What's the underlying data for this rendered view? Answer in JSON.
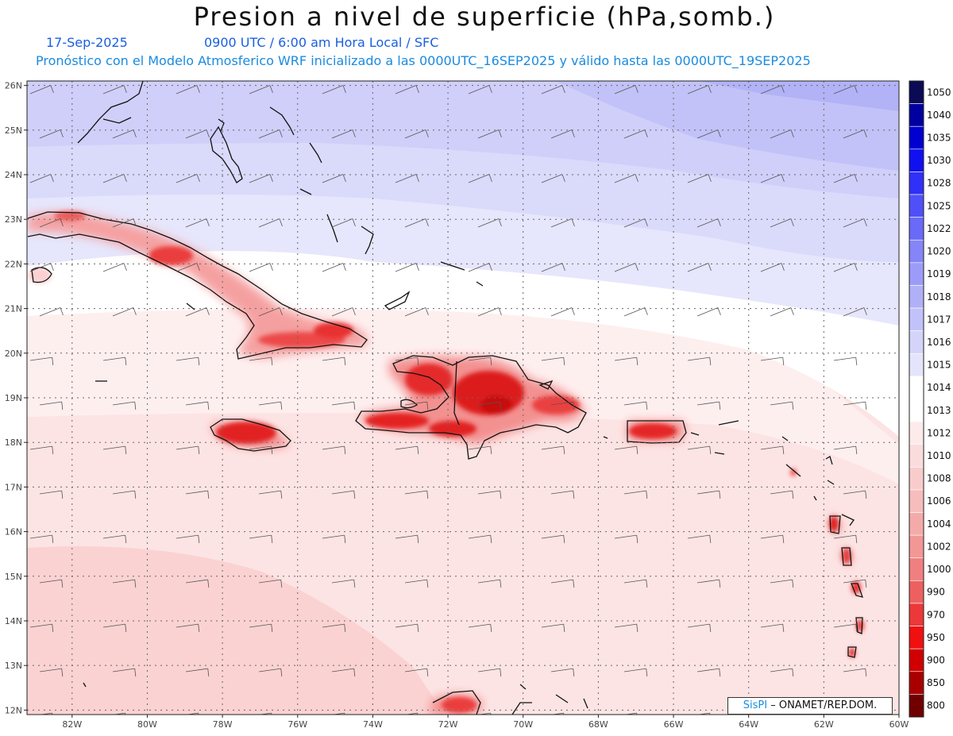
{
  "title": "Presion a nivel de superficie (hPa,somb.)",
  "date": "17-Sep-2025",
  "time_info": "0900 UTC / 6:00 am Hora Local / SFC",
  "forecast_info": "Pronóstico con el Modelo Atmosferico WRF inicializado a las 0000UTC_16SEP2025 y válido hasta las  0000UTC_19SEP2025",
  "credit": {
    "brand": "SisPI",
    "text": " – ONAMET/REP.DOM."
  },
  "map": {
    "lon_range": [
      -83.2,
      -60
    ],
    "lat_range": [
      11.9,
      26.1
    ],
    "lat_ticks": [
      "26N",
      "25N",
      "24N",
      "23N",
      "22N",
      "21N",
      "20N",
      "19N",
      "18N",
      "17N",
      "16N",
      "15N",
      "14N",
      "13N",
      "12N"
    ],
    "lon_ticks": [
      "82W",
      "80W",
      "78W",
      "76W",
      "74W",
      "72W",
      "70W",
      "68W",
      "66W",
      "64W",
      "62W",
      "60W"
    ],
    "grid": "dotted"
  },
  "legend": {
    "levels": [
      "1050",
      "1040",
      "1035",
      "1030",
      "1028",
      "1025",
      "1022",
      "1020",
      "1019",
      "1018",
      "1017",
      "1016",
      "1015",
      "1014",
      "1013",
      "1012",
      "1010",
      "1008",
      "1006",
      "1004",
      "1002",
      "1000",
      "990",
      "970",
      "950",
      "900",
      "850",
      "800"
    ],
    "colors": [
      "#0a0a55",
      "#0000a0",
      "#0000d0",
      "#1010f0",
      "#3030f8",
      "#5050f8",
      "#6a6af8",
      "#8585f8",
      "#9c9cf8",
      "#b0b0f8",
      "#c2c2fa",
      "#d4d4fb",
      "#e4e4fc",
      "#ffffff",
      "#ffffff",
      "#fdeaea",
      "#fbdcdc",
      "#f9cccc",
      "#f7bcbc",
      "#f5aaaa",
      "#f39696",
      "#f08080",
      "#ee6060",
      "#ec3838",
      "#f01010",
      "#d00000",
      "#a80000",
      "#700000"
    ]
  }
}
